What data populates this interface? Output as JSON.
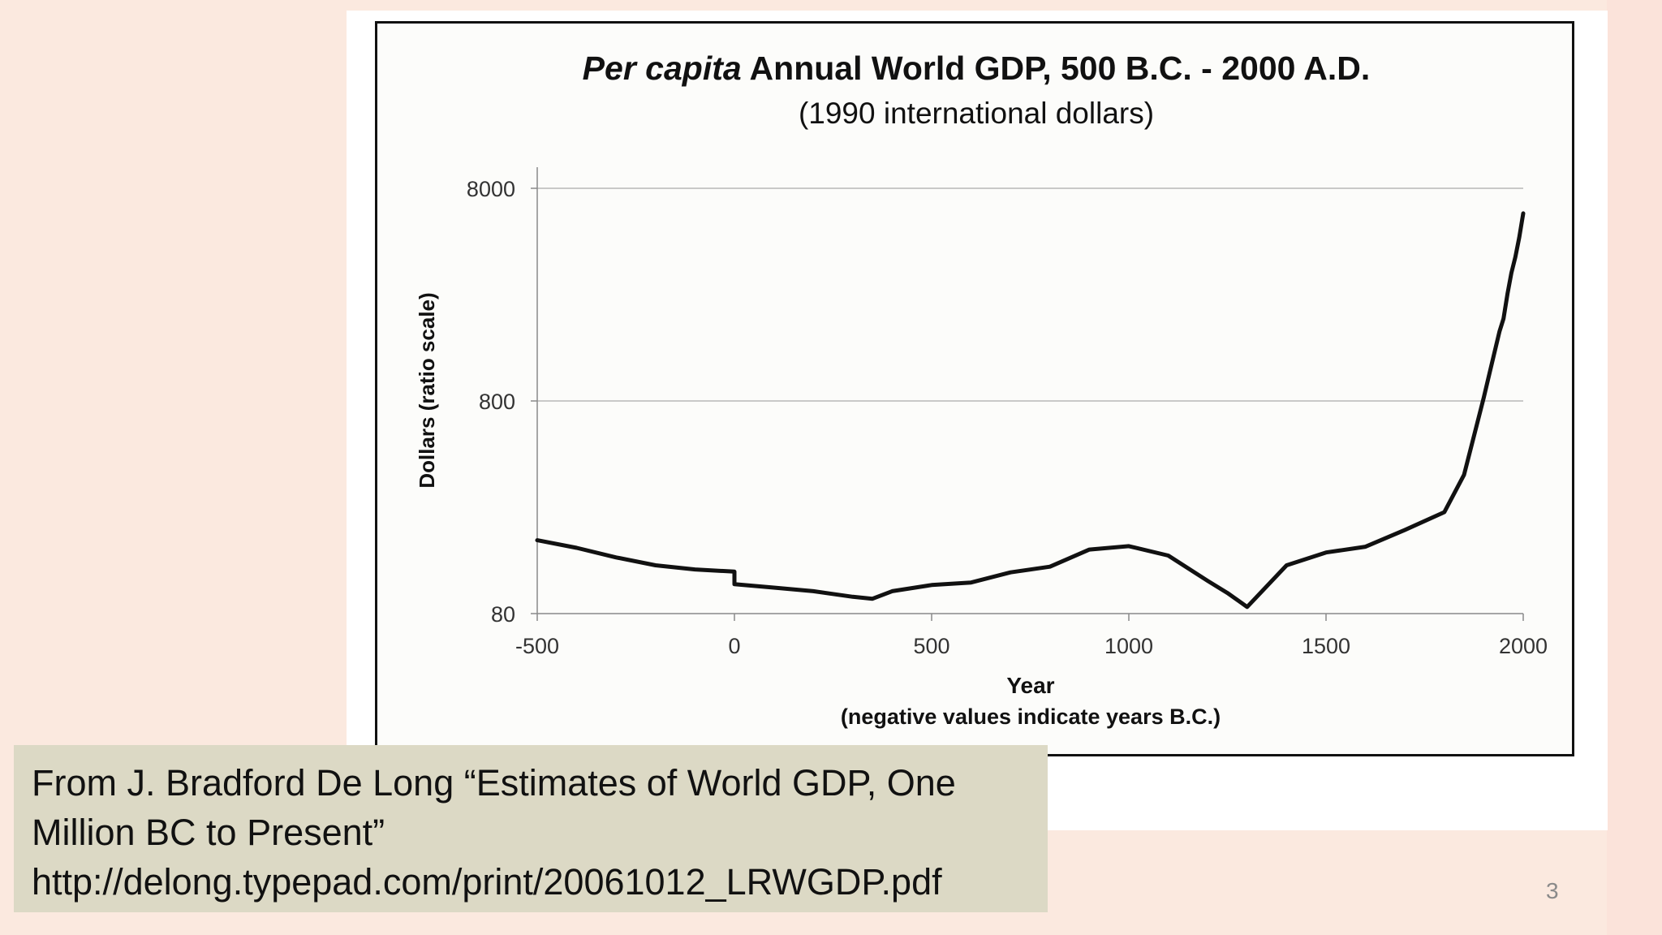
{
  "slide": {
    "page_number": "3",
    "source_lines": [
      "From J. Bradford De Long “Estimates of World GDP, One",
      "Million BC to Present”",
      "http://delong.typepad.com/print/20061012_LRWGDP.pdf"
    ]
  },
  "colors": {
    "background": "#fbe9df",
    "source_box": "#dcd9c5",
    "line": "#111111",
    "gridline": "#b8b8b8"
  },
  "chart_data": {
    "type": "line",
    "title_italic": "Per capita",
    "title_rest": " Annual World GDP, 500 B.C. - 2000 A.D.",
    "subtitle": "(1990 international dollars)",
    "xlabel": "Year",
    "xlabel_note": "(negative values indicate years B.C.)",
    "ylabel": "Dollars (ratio scale)",
    "yscale": "log",
    "xlim": [
      -500,
      2000
    ],
    "ylim": [
      80,
      8000
    ],
    "x_ticks": [
      "-500",
      "0",
      "500",
      "1000",
      "1500",
      "2000"
    ],
    "y_ticks": [
      "8000",
      "800",
      "80"
    ],
    "grid": "horizontal",
    "legend": "none",
    "series": [
      {
        "x": [
          -500,
          -400,
          -300,
          -200,
          -100,
          0,
          0,
          100,
          200,
          300,
          350,
          400,
          500,
          600,
          700,
          800,
          900,
          1000,
          1100,
          1200,
          1250,
          1300,
          1400,
          1500,
          1600,
          1700,
          1800,
          1850,
          1900,
          1913,
          1940,
          1950,
          1960,
          1970,
          1980,
          1990,
          2000
        ],
        "y": [
          177,
          163,
          147,
          135,
          129,
          126,
          110,
          106,
          102,
          96,
          94,
          102,
          109,
          112,
          125,
          133,
          160,
          166,
          150,
          114,
          100,
          86,
          135,
          155,
          165,
          198,
          240,
          360,
          830,
          1050,
          1700,
          1950,
          2550,
          3200,
          3800,
          4700,
          6100
        ]
      }
    ]
  }
}
